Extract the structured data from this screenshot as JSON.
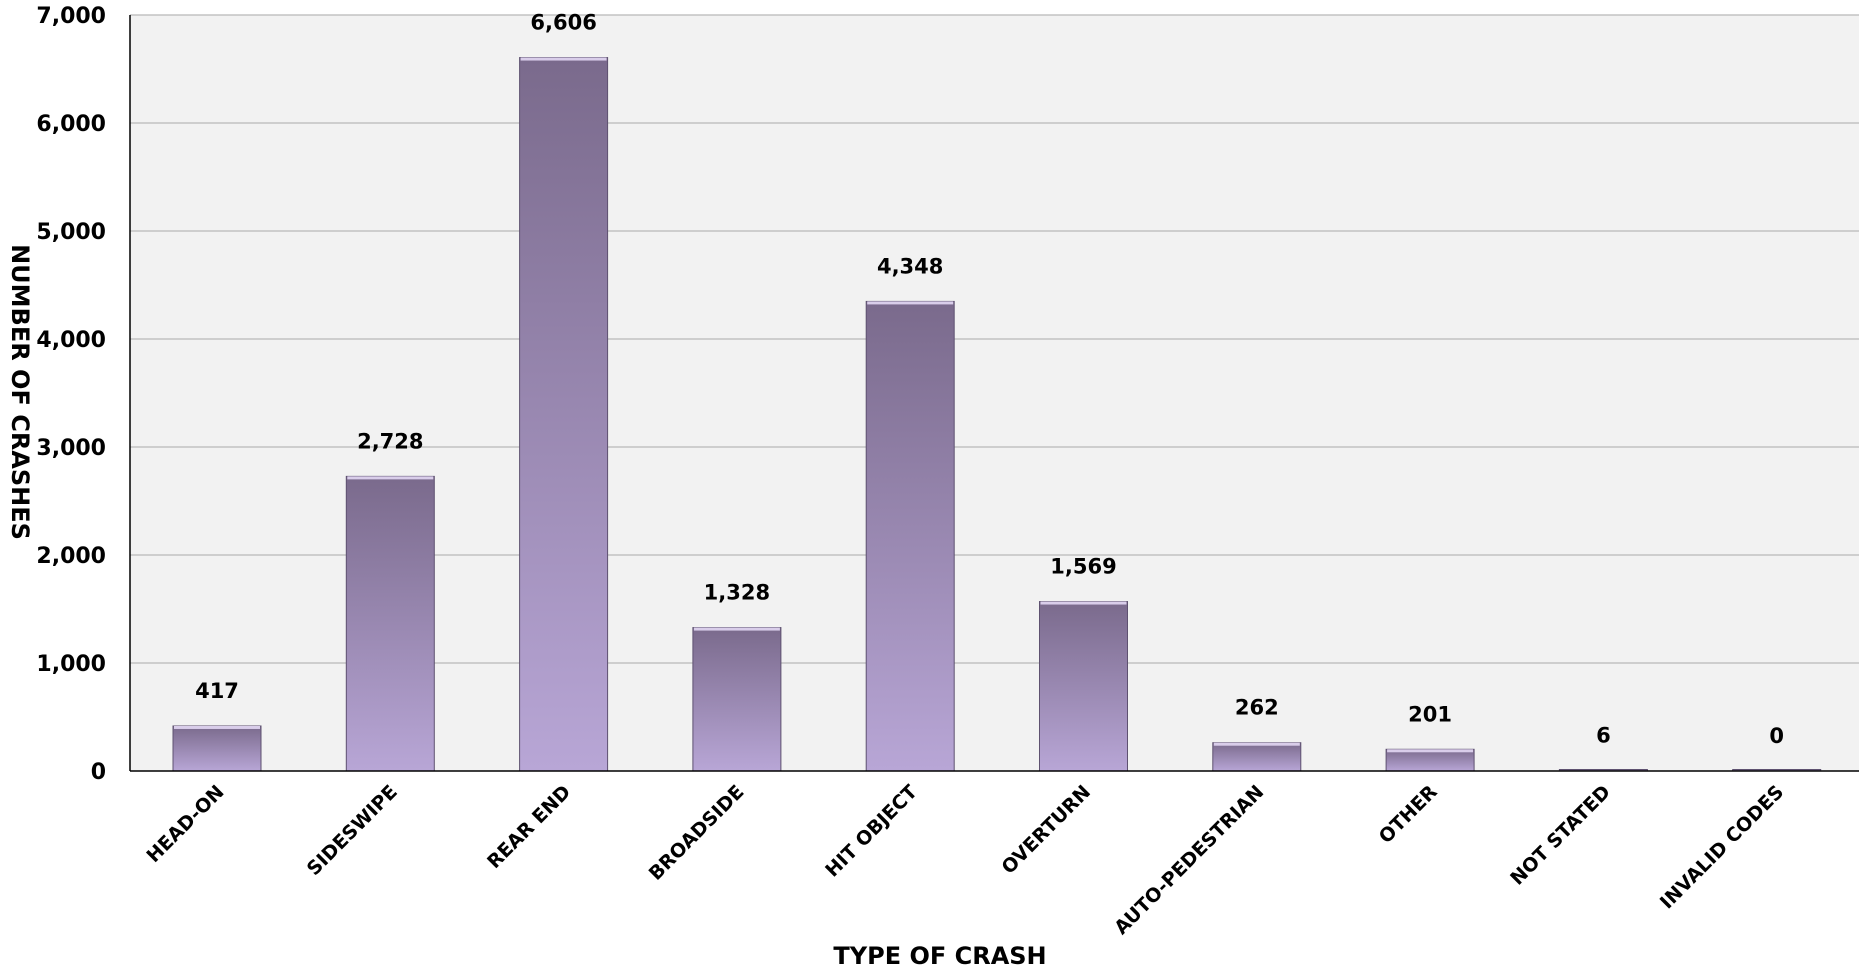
{
  "chart_data": {
    "type": "bar",
    "title": "",
    "xlabel": "TYPE OF CRASH",
    "ylabel": "NUMBER OF CRASHES",
    "ylim": [
      0,
      7000
    ],
    "yticks": [
      0,
      1000,
      2000,
      3000,
      4000,
      5000,
      6000,
      7000
    ],
    "ytick_labels": [
      "0",
      "1,000",
      "2,000",
      "3,000",
      "4,000",
      "5,000",
      "6,000",
      "7,000"
    ],
    "categories": [
      "HEAD-ON",
      "SIDESWIPE",
      "REAR END",
      "BROADSIDE",
      "HIT OBJECT",
      "OVERTURN",
      "AUTO-PEDESTRIAN",
      "OTHER",
      "NOT STATED",
      "INVALID CODES"
    ],
    "values": [
      417,
      2728,
      6606,
      1328,
      4348,
      1569,
      262,
      201,
      6,
      0
    ],
    "value_labels": [
      "417",
      "2,728",
      "6,606",
      "1,328",
      "4,348",
      "1,569",
      "262",
      "201",
      "6",
      "0"
    ],
    "grid": true,
    "legend": "none",
    "colors": {
      "bar_dark": "#7a6a8c",
      "bar_light": "#b8a6d6",
      "plot_bg": "#f2f2f2",
      "gridline": "#b8b8b8"
    }
  }
}
